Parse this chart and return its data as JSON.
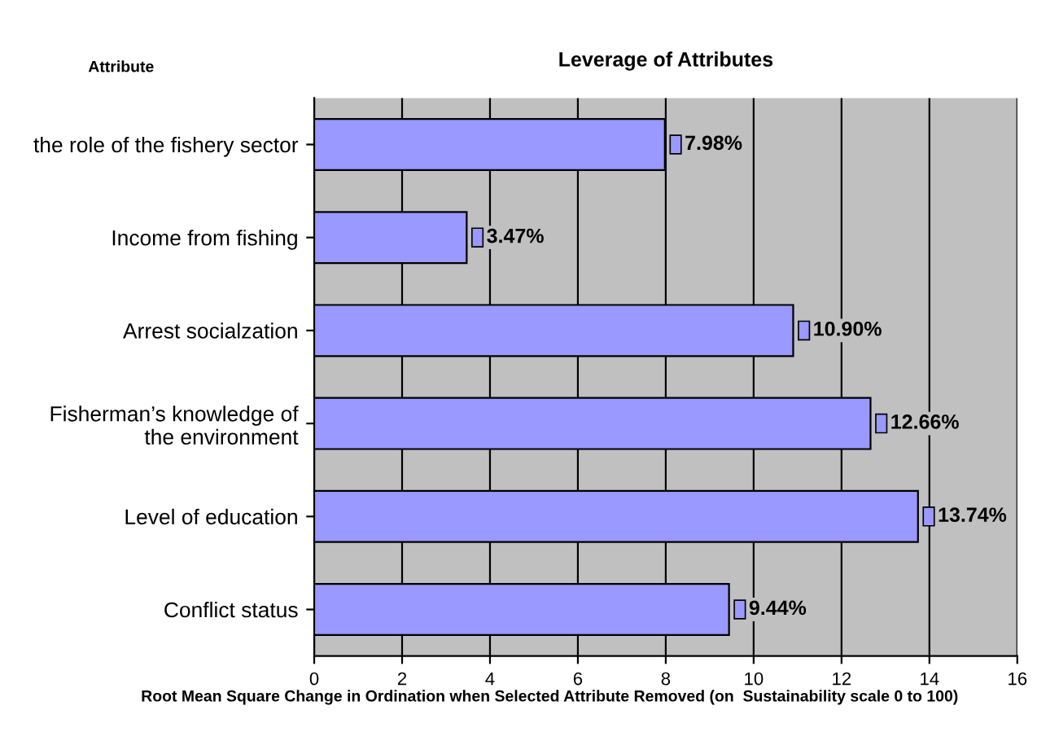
{
  "chart_data": {
    "type": "bar",
    "orientation": "horizontal",
    "title": "Leverage of Attributes",
    "ylabel": "Attribute",
    "xlabel": "Root Mean Square Change in Ordination when Selected Attribute Removed (on  Sustainability scale 0 to 100)",
    "categories": [
      "the role of the fishery sector",
      "Income from fishing",
      "Arrest socialzation",
      "Fisherman’s knowledge of\nthe environment",
      "Level of education",
      "Conflict status"
    ],
    "values": [
      7.98,
      3.47,
      10.9,
      12.66,
      13.74,
      9.44
    ],
    "value_labels": [
      "7.98%",
      "3.47%",
      "10.90%",
      "12.66%",
      "13.74%",
      "9.44%"
    ],
    "color": "#9999ff",
    "xlim": [
      0,
      16
    ],
    "xticks": [
      0,
      2,
      4,
      6,
      8,
      10,
      12,
      14,
      16
    ],
    "grid": "x",
    "legend": false
  }
}
